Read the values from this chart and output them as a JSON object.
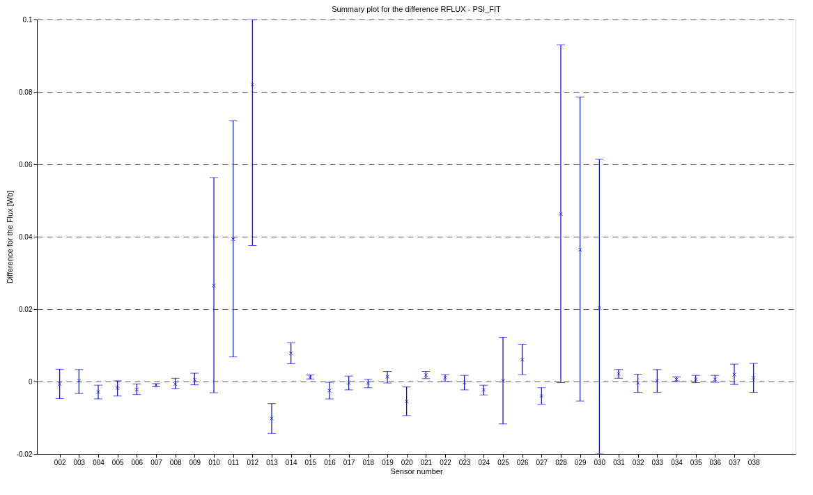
{
  "chart_data": {
    "type": "scatter",
    "title": "Summary plot for the difference RFLUX - PSI_FIT",
    "xlabel": "Sensor number",
    "ylabel": "Difference for the Flux [Wb]",
    "x": [
      2,
      3,
      4,
      5,
      6,
      7,
      8,
      9,
      10,
      11,
      12,
      13,
      14,
      15,
      16,
      17,
      18,
      19,
      20,
      21,
      22,
      23,
      24,
      25,
      26,
      27,
      28,
      29,
      30,
      31,
      32,
      33,
      34,
      35,
      36,
      37,
      38
    ],
    "series": [
      {
        "color": "#0000ff",
        "values": [
          -0.0007,
          0.0002,
          -0.0029,
          -0.0018,
          -0.0022,
          -0.001,
          -0.0007,
          0.0005,
          0.0265,
          0.0393,
          0.082,
          -0.0102,
          0.0078,
          0.0012,
          -0.0025,
          -0.0004,
          -0.0004,
          0.0013,
          -0.0055,
          0.0018,
          0.0011,
          -0.0003,
          -0.0023,
          0.0002,
          0.006,
          -0.004,
          0.0463,
          0.0364,
          0.0203,
          0.0021,
          -0.0004,
          0.0002,
          0.0006,
          0.0006,
          0.0006,
          0.0019,
          0.001
        ],
        "errors": [
          [
            -0.0047,
            0.0034
          ],
          [
            -0.0033,
            0.0033
          ],
          [
            -0.0048,
            -0.001
          ],
          [
            -0.004,
            0.0002
          ],
          [
            -0.0036,
            -0.0007
          ],
          [
            -0.0014,
            -0.0006
          ],
          [
            -0.002,
            0.0009
          ],
          [
            -0.0009,
            0.0023
          ],
          [
            -0.0031,
            0.0563
          ],
          [
            0.0068,
            0.072
          ],
          [
            0.0376,
            0.1
          ],
          [
            -0.0143,
            -0.0061
          ],
          [
            0.0049,
            0.0107
          ],
          [
            0.0007,
            0.0018
          ],
          [
            -0.0048,
            -0.0002
          ],
          [
            -0.0023,
            0.0015
          ],
          [
            -0.0017,
            0.0006
          ],
          [
            -0.0004,
            0.0028
          ],
          [
            -0.0094,
            -0.0015
          ],
          [
            0.0008,
            0.0028
          ],
          [
            0.0,
            0.0019
          ],
          [
            -0.0023,
            0.0017
          ],
          [
            -0.0037,
            -0.001
          ],
          [
            -0.0117,
            0.0122
          ],
          [
            0.0019,
            0.0103
          ],
          [
            -0.0063,
            -0.0017
          ],
          [
            -0.0003,
            0.093
          ],
          [
            -0.0054,
            0.0786
          ],
          [
            -0.02,
            0.0614
          ],
          [
            0.0009,
            0.0033
          ],
          [
            -0.003,
            0.002
          ],
          [
            -0.003,
            0.0033
          ],
          [
            0.0,
            0.0013
          ],
          [
            -0.0003,
            0.0017
          ],
          [
            -0.0002,
            0.0017
          ],
          [
            -0.0008,
            0.0048
          ],
          [
            -0.003,
            0.005
          ]
        ]
      }
    ],
    "xlim": [
      1,
      40
    ],
    "xticks": [
      {
        "value": 2,
        "label": "002"
      },
      {
        "value": 3,
        "label": "003"
      },
      {
        "value": 4,
        "label": "004"
      },
      {
        "value": 5,
        "label": "005"
      },
      {
        "value": 6,
        "label": "006"
      },
      {
        "value": 7,
        "label": "007"
      },
      {
        "value": 8,
        "label": "008"
      },
      {
        "value": 9,
        "label": "009"
      },
      {
        "value": 10,
        "label": "010"
      },
      {
        "value": 11,
        "label": "011"
      },
      {
        "value": 12,
        "label": "012"
      },
      {
        "value": 13,
        "label": "013"
      },
      {
        "value": 14,
        "label": "014"
      },
      {
        "value": 15,
        "label": "015"
      },
      {
        "value": 16,
        "label": "016"
      },
      {
        "value": 17,
        "label": "017"
      },
      {
        "value": 18,
        "label": "018"
      },
      {
        "value": 19,
        "label": "019"
      },
      {
        "value": 20,
        "label": "020"
      },
      {
        "value": 21,
        "label": "021"
      },
      {
        "value": 22,
        "label": "022"
      },
      {
        "value": 23,
        "label": "023"
      },
      {
        "value": 24,
        "label": "024"
      },
      {
        "value": 25,
        "label": "025"
      },
      {
        "value": 26,
        "label": "026"
      },
      {
        "value": 27,
        "label": "027"
      },
      {
        "value": 28,
        "label": "028"
      },
      {
        "value": 29,
        "label": "029"
      },
      {
        "value": 30,
        "label": "030"
      },
      {
        "value": 31,
        "label": "031"
      },
      {
        "value": 32,
        "label": "032"
      },
      {
        "value": 33,
        "label": "033"
      },
      {
        "value": 34,
        "label": "034"
      },
      {
        "value": 35,
        "label": "035"
      },
      {
        "value": 36,
        "label": "036"
      },
      {
        "value": 37,
        "label": "037"
      },
      {
        "value": 38,
        "label": "038"
      }
    ],
    "ylim": [
      -0.02,
      0.1
    ],
    "yticks": [
      -0.02,
      0,
      0.02,
      0.04,
      0.06,
      0.08,
      0.1
    ],
    "grid": "y",
    "marker": "cross"
  }
}
